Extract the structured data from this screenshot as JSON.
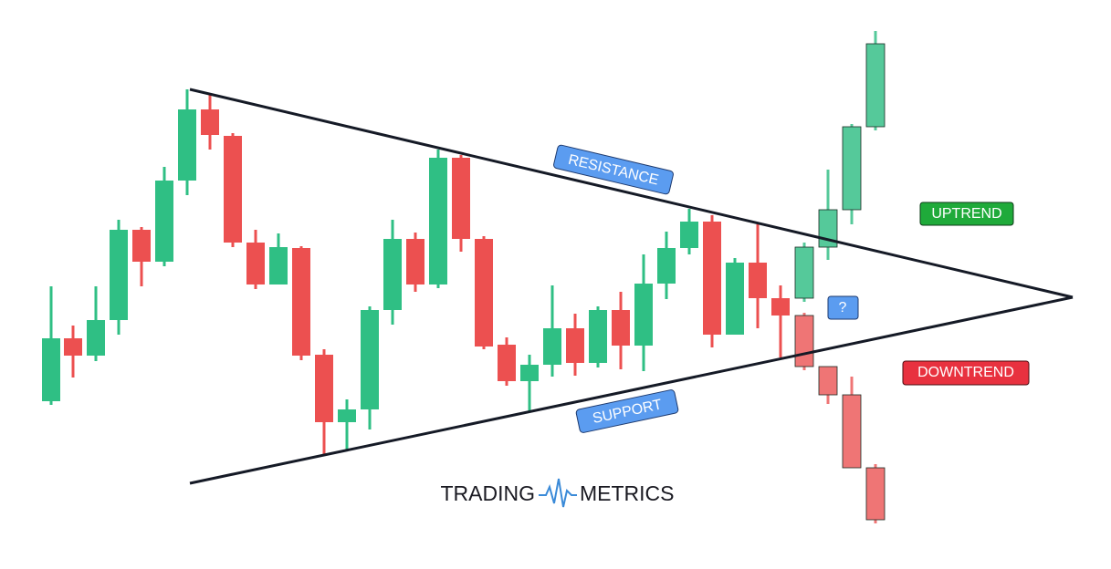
{
  "labels": {
    "resistance": "RESISTANCE",
    "support": "SUPPORT",
    "uptrend": "UPTREND",
    "downtrend": "DOWNTREND",
    "question": "?"
  },
  "logo": {
    "left": "TRADING",
    "right": "METRICS"
  }
}
